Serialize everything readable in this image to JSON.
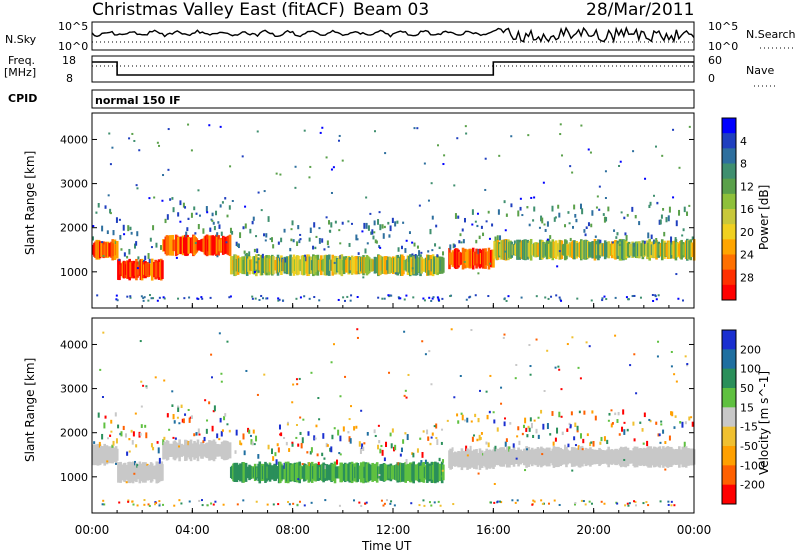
{
  "header": {
    "title": "Christmas Valley East (fitACF)",
    "beam": "Beam 03",
    "date": "28/Mar/2011"
  },
  "status_panels": {
    "nsky_label": "N.Sky",
    "nsky_tick_top": "10^5",
    "nsky_tick_bottom": "10^0",
    "nsearch_label": "N.Search",
    "nsearch_tick_top": "10^5",
    "nsearch_tick_bottom": "10^0",
    "freq_label_line1": "Freq.",
    "freq_label_line2": "[MHz]",
    "freq_tick_top": "18",
    "freq_tick_bottom": "8",
    "nave_label": "Nave",
    "nave_tick_top": "60",
    "nave_tick_bottom": "0",
    "cpid_label": "CPID",
    "cpid_text": "normal 150 IF"
  },
  "chart_data": [
    {
      "type": "heatmap",
      "panel": "power",
      "ylabel": "Slant Range [km]",
      "xlabel": "",
      "yticks": [
        1000,
        2000,
        3000,
        4000
      ],
      "ylim": [
        180,
        4600
      ],
      "xlim": [
        0,
        24
      ],
      "colorbar": {
        "label": "Power [dB]",
        "ticks": [
          "4",
          "8",
          "12",
          "16",
          "20",
          "24",
          "28"
        ],
        "colors": [
          "#0000ff",
          "#1f3fbf",
          "#2e6f9e",
          "#3f8f6f",
          "#5aa04a",
          "#8ec03a",
          "#c8c83a",
          "#f0d020",
          "#ffa500",
          "#ff7000",
          "#ff3000",
          "#ff0000"
        ]
      },
      "echo_bands": [
        {
          "t_start": 0.0,
          "t_end": 1.0,
          "range_km": 1500,
          "level": "high"
        },
        {
          "t_start": 1.0,
          "t_end": 2.8,
          "range_km": 1050,
          "level": "high"
        },
        {
          "t_start": 2.8,
          "t_end": 5.5,
          "range_km": 1600,
          "level": "high"
        },
        {
          "t_start": 5.5,
          "t_end": 14.0,
          "range_km": 1150,
          "level": "medium"
        },
        {
          "t_start": 14.2,
          "t_end": 16.0,
          "range_km": 1300,
          "level": "high"
        },
        {
          "t_start": 16.0,
          "t_end": 24.0,
          "range_km": 1500,
          "level": "medium"
        }
      ]
    },
    {
      "type": "heatmap",
      "panel": "velocity",
      "ylabel": "Slant Range [km]",
      "xlabel": "Time UT",
      "yticks": [
        1000,
        2000,
        3000,
        4000
      ],
      "ylim": [
        180,
        4600
      ],
      "xlim": [
        0,
        24
      ],
      "xticks": [
        "00:00",
        "04:00",
        "08:00",
        "12:00",
        "16:00",
        "20:00",
        "00:00"
      ],
      "colorbar": {
        "label": "Velocity [m s^-1]",
        "ticks": [
          "200",
          "100",
          "50",
          "15",
          "-15",
          "-50",
          "-100",
          "-200"
        ],
        "colors": [
          "#1a2fd0",
          "#1f6fa0",
          "#2a8f5a",
          "#5fc040",
          "#c8c8c8",
          "#f0c030",
          "#ffa000",
          "#ff6000",
          "#ff0000"
        ]
      },
      "echo_bands": [
        {
          "t_start": 0.0,
          "t_end": 1.0,
          "range_km": 1500,
          "level": "ground"
        },
        {
          "t_start": 1.0,
          "t_end": 2.8,
          "range_km": 1100,
          "level": "ground"
        },
        {
          "t_start": 2.8,
          "t_end": 5.5,
          "range_km": 1600,
          "level": "ground"
        },
        {
          "t_start": 5.5,
          "t_end": 14.0,
          "range_km": 1100,
          "level": "positive"
        },
        {
          "t_start": 14.2,
          "t_end": 16.0,
          "range_km": 1400,
          "level": "ground"
        },
        {
          "t_start": 16.0,
          "t_end": 24.0,
          "range_km": 1450,
          "level": "ground"
        }
      ]
    }
  ]
}
